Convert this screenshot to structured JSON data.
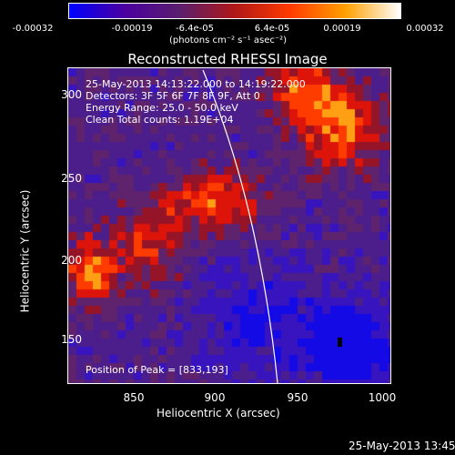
{
  "colorbar": {
    "tick_labels": [
      "-0.00032",
      "-0.00019",
      "-6.4e-05",
      "6.4e-05",
      "0.00019",
      "0.00032"
    ],
    "units_label": "(photons cm⁻² s⁻¹ asec⁻²)",
    "colors": [
      "#0000ff",
      "#4b00a0",
      "#5a1e6e",
      "#b01818",
      "#ff3a00",
      "#ffa000",
      "#ffffff"
    ]
  },
  "title": "Reconstructed RHESSI Image",
  "info_lines": {
    "time": "25-May-2013 14:13:22.000 to 14:19:22.000",
    "detectors": "Detectors: 3F 5F 6F 7F 8F 9F, Att 0",
    "energy": "Energy Range: 25.0 - 50.0 keV",
    "clean": "Clean    Total counts: 1.19E+04"
  },
  "peak_label": "Position of Peak = [833,193]",
  "axes": {
    "xlabel": "Heliocentric X (arcsec)",
    "ylabel": "Heliocentric Y (arcsec)",
    "xticks": [
      "850",
      "900",
      "950",
      "1000"
    ],
    "yticks": [
      "150",
      "200",
      "250",
      "300"
    ]
  },
  "timestamp": "25-May-2013 13:45"
}
